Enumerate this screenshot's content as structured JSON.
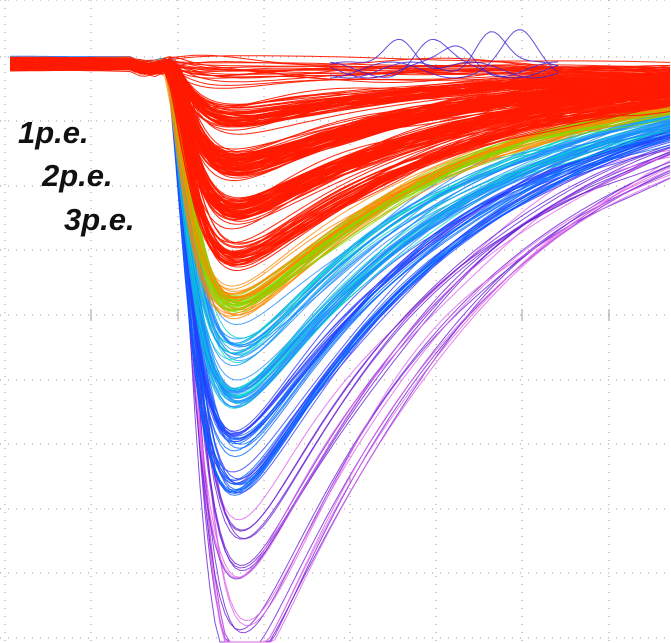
{
  "labels": [
    "1p.e.",
    "2p.e.",
    "3p.e."
  ]
}
